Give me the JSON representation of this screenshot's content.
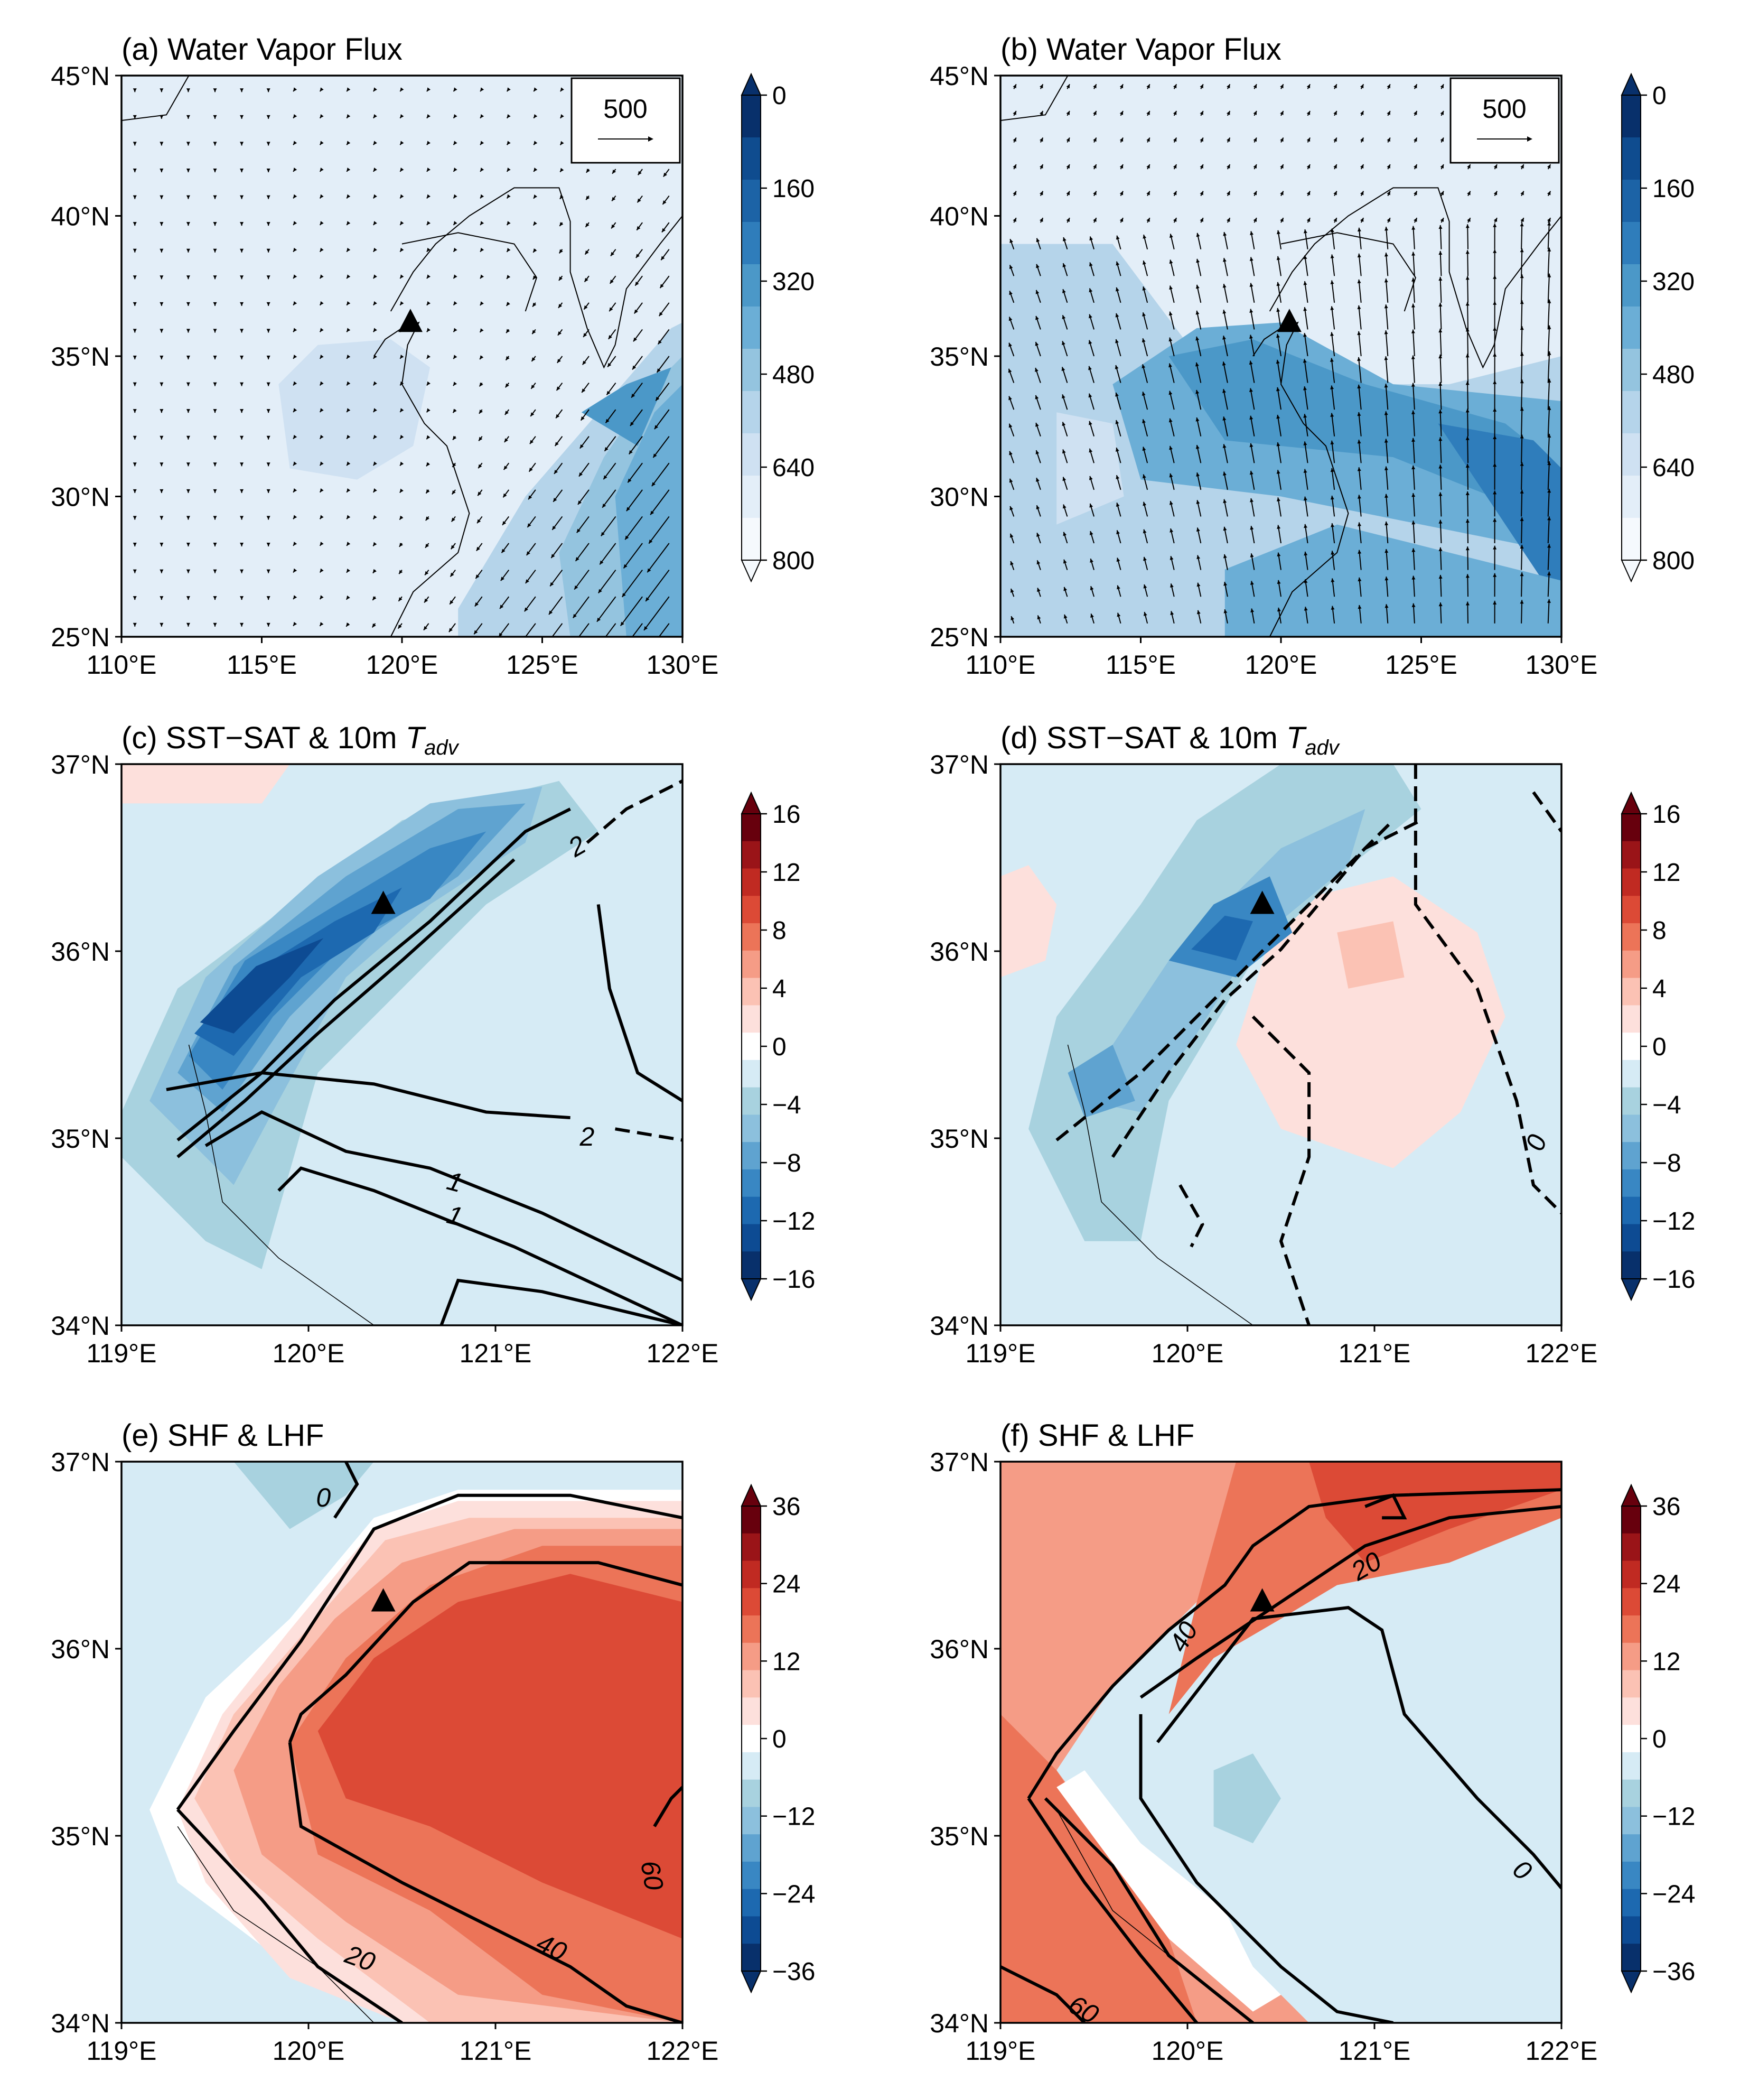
{
  "figure": {
    "degree_sign": "°",
    "panels": [
      {
        "id": "a",
        "title": "(a) Water Vapor Flux",
        "title_plain": "(a) Water Vapor Flux",
        "type": "vapor",
        "cmap": "blues",
        "lon_ticks": [
          "110°E",
          "115°E",
          "120°E",
          "125°E",
          "130°E"
        ],
        "lat_ticks": [
          "25°N",
          "30°N",
          "35°N",
          "40°N",
          "45°N"
        ],
        "colorbar": {
          "ticks": [
            "0",
            "160",
            "320",
            "480",
            "640",
            "800"
          ]
        },
        "reference_vector": "500",
        "station_marker": {
          "lon": 120.3,
          "lat": 36.2
        }
      },
      {
        "id": "b",
        "title": "(b) Water Vapor Flux",
        "title_plain": "(b) Water Vapor Flux",
        "type": "vapor",
        "cmap": "blues",
        "lon_ticks": [
          "110°E",
          "115°E",
          "120°E",
          "125°E",
          "130°E"
        ],
        "lat_ticks": [
          "25°N",
          "30°N",
          "35°N",
          "40°N",
          "45°N"
        ],
        "colorbar": {
          "ticks": [
            "0",
            "160",
            "320",
            "480",
            "640",
            "800"
          ]
        },
        "reference_vector": "500",
        "station_marker": {
          "lon": 120.3,
          "lat": 36.2
        }
      },
      {
        "id": "c",
        "title_prefix": "(c) SST−SAT & 10m ",
        "title_italic": "T",
        "title_sub": "adv",
        "type": "sst",
        "cmap": "rdbu",
        "lon_ticks": [
          "119°E",
          "120°E",
          "121°E",
          "122°E"
        ],
        "lat_ticks": [
          "34°N",
          "35°N",
          "36°N",
          "37°N"
        ],
        "colorbar": {
          "ticks": [
            "16",
            "12",
            "8",
            "4",
            "0",
            "−4",
            "−8",
            "−12",
            "−16"
          ]
        },
        "contour_labels": [
          "2",
          "2",
          "1",
          "1"
        ],
        "station_marker": {
          "lon": 120.4,
          "lat": 36.25
        }
      },
      {
        "id": "d",
        "title_prefix": "(d) SST−SAT & 10m ",
        "title_italic": "T",
        "title_sub": "adv",
        "type": "sst",
        "cmap": "rdbu",
        "lon_ticks": [
          "119°E",
          "120°E",
          "121°E",
          "122°E"
        ],
        "lat_ticks": [
          "34°N",
          "35°N",
          "36°N",
          "37°N"
        ],
        "colorbar": {
          "ticks": [
            "16",
            "12",
            "8",
            "4",
            "0",
            "−4",
            "−8",
            "−12",
            "−16"
          ]
        },
        "contour_labels": [
          "0"
        ],
        "station_marker": {
          "lon": 120.4,
          "lat": 36.25
        }
      },
      {
        "id": "e",
        "title": "(e) SHF & LHF",
        "title_plain": "(e) SHF & LHF",
        "type": "flux",
        "cmap": "rdbu",
        "lon_ticks": [
          "119°E",
          "120°E",
          "121°E",
          "122°E"
        ],
        "lat_ticks": [
          "34°N",
          "35°N",
          "36°N",
          "37°N"
        ],
        "colorbar": {
          "ticks": [
            "36",
            "24",
            "12",
            "0",
            "−12",
            "−24",
            "−36"
          ]
        },
        "contour_labels": [
          "0",
          "20",
          "40",
          "60"
        ],
        "station_marker": {
          "lon": 120.4,
          "lat": 36.25
        }
      },
      {
        "id": "f",
        "title": "(f) SHF & LHF",
        "title_plain": "(f) SHF & LHF",
        "type": "flux",
        "cmap": "rdbu",
        "lon_ticks": [
          "119°E",
          "120°E",
          "121°E",
          "122°E"
        ],
        "lat_ticks": [
          "34°N",
          "35°N",
          "36°N",
          "37°N"
        ],
        "colorbar": {
          "ticks": [
            "36",
            "24",
            "12",
            "0",
            "−12",
            "−24",
            "−36"
          ]
        },
        "contour_labels": [
          "20",
          "40",
          "0",
          "60"
        ],
        "station_marker": {
          "lon": 120.4,
          "lat": 36.25
        }
      }
    ]
  },
  "chart_data": [
    {
      "type": "heatmap",
      "panel": "a",
      "title": "(a) Water Vapor Flux",
      "x_range": [
        110,
        130
      ],
      "y_range": [
        25,
        45
      ],
      "colorbar_range": [
        0,
        800
      ],
      "colorbar_ticks": [
        0,
        160,
        320,
        480,
        640,
        800
      ],
      "reference_vector": 500,
      "station": {
        "lon": 120.3,
        "lat": 36.2
      }
    },
    {
      "type": "heatmap",
      "panel": "b",
      "title": "(b) Water Vapor Flux",
      "x_range": [
        110,
        130
      ],
      "y_range": [
        25,
        45
      ],
      "colorbar_range": [
        0,
        800
      ],
      "colorbar_ticks": [
        0,
        160,
        320,
        480,
        640,
        800
      ],
      "reference_vector": 500,
      "station": {
        "lon": 120.3,
        "lat": 36.2
      }
    },
    {
      "type": "heatmap",
      "panel": "c",
      "title": "(c) SST−SAT & 10m T_adv",
      "x_range": [
        119,
        122
      ],
      "y_range": [
        34,
        37
      ],
      "colorbar_range": [
        -16,
        16
      ],
      "colorbar_ticks": [
        16,
        12,
        8,
        4,
        0,
        -4,
        -8,
        -12,
        -16
      ],
      "contour_labels": [
        2,
        2,
        1,
        1
      ],
      "station": {
        "lon": 120.4,
        "lat": 36.25
      }
    },
    {
      "type": "heatmap",
      "panel": "d",
      "title": "(d) SST−SAT & 10m T_adv",
      "x_range": [
        119,
        122
      ],
      "y_range": [
        34,
        37
      ],
      "colorbar_range": [
        -16,
        16
      ],
      "colorbar_ticks": [
        16,
        12,
        8,
        4,
        0,
        -4,
        -8,
        -12,
        -16
      ],
      "contour_labels": [
        0
      ],
      "station": {
        "lon": 120.4,
        "lat": 36.25
      }
    },
    {
      "type": "heatmap",
      "panel": "e",
      "title": "(e) SHF & LHF",
      "x_range": [
        119,
        122
      ],
      "y_range": [
        34,
        37
      ],
      "colorbar_range": [
        -36,
        36
      ],
      "colorbar_ticks": [
        36,
        24,
        12,
        0,
        -12,
        -24,
        -36
      ],
      "contour_labels": [
        0,
        20,
        40,
        60
      ],
      "station": {
        "lon": 120.4,
        "lat": 36.25
      }
    },
    {
      "type": "heatmap",
      "panel": "f",
      "title": "(f) SHF & LHF",
      "x_range": [
        119,
        122
      ],
      "y_range": [
        34,
        37
      ],
      "colorbar_range": [
        -36,
        36
      ],
      "colorbar_ticks": [
        36,
        24,
        12,
        0,
        -12,
        -24,
        -36
      ],
      "contour_labels": [
        20,
        40,
        0,
        60
      ],
      "station": {
        "lon": 120.4,
        "lat": 36.25
      }
    }
  ]
}
